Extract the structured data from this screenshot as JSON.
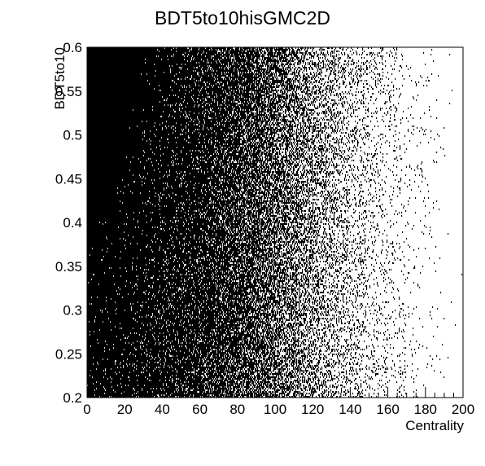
{
  "chart_data": {
    "type": "heatmap",
    "title": "BDT5to10hisGMC2D",
    "xlabel": "Centrality",
    "ylabel": "BDT5to10",
    "xlim": [
      0,
      200
    ],
    "ylim": [
      0.2,
      0.6
    ],
    "x_ticks": [
      0,
      20,
      40,
      60,
      80,
      100,
      120,
      140,
      160,
      180,
      200
    ],
    "x_tick_labels": [
      "0",
      "20",
      "40",
      "60",
      "80",
      "100",
      "120",
      "140",
      "160",
      "180",
      "200"
    ],
    "y_ticks": [
      0.2,
      0.25,
      0.3,
      0.35,
      0.4,
      0.45,
      0.5,
      0.55,
      0.6
    ],
    "y_tick_labels": [
      "0.2",
      "0.25",
      "0.3",
      "0.35",
      "0.4",
      "0.45",
      "0.5",
      "0.55",
      "0.6"
    ],
    "density_profile": {
      "description_units": "relative point density vs Centrality (data units)",
      "x": [
        0,
        20,
        40,
        60,
        80,
        90,
        100,
        110,
        120,
        130,
        140,
        150,
        160,
        170,
        180,
        200
      ],
      "density": [
        1.0,
        0.98,
        0.93,
        0.87,
        0.78,
        0.7,
        0.6,
        0.48,
        0.36,
        0.26,
        0.18,
        0.12,
        0.07,
        0.04,
        0.015,
        0.0
      ]
    },
    "grid": false,
    "legend": "none",
    "colors": {
      "points": "#000000",
      "background": "#ffffff",
      "axes": "#000000"
    }
  }
}
